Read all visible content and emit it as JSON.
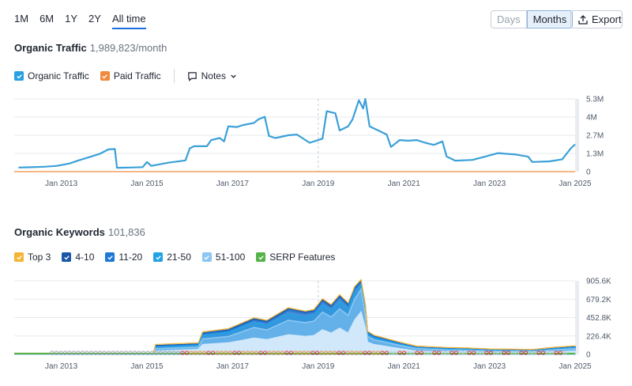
{
  "ranges": [
    {
      "label": "1M",
      "active": false
    },
    {
      "label": "6M",
      "active": false
    },
    {
      "label": "1Y",
      "active": false
    },
    {
      "label": "2Y",
      "active": false
    },
    {
      "label": "All time",
      "active": true
    }
  ],
  "view_toggle": {
    "days": "Days",
    "months": "Months",
    "selected": "Months"
  },
  "export_label": "Export",
  "traffic": {
    "title": "Organic Traffic",
    "metric": "1,989,823/month",
    "legend": [
      {
        "label": "Organic Traffic",
        "color": "#29a0e0",
        "checked": true
      },
      {
        "label": "Paid Traffic",
        "color": "#f08a3c",
        "checked": true
      }
    ],
    "notes_label": "Notes"
  },
  "keywords": {
    "title": "Organic Keywords",
    "metric": "101,836",
    "legend": [
      {
        "label": "Top 3",
        "color": "#f4b534",
        "checked": true
      },
      {
        "label": "4-10",
        "color": "#1a57a8",
        "checked": true
      },
      {
        "label": "11-20",
        "color": "#1f78d6",
        "checked": true
      },
      {
        "label": "21-50",
        "color": "#22a3e6",
        "checked": true
      },
      {
        "label": "51-100",
        "color": "#8cc6f2",
        "checked": true
      },
      {
        "label": "SERP Features",
        "color": "#56b34a",
        "checked": true
      }
    ]
  },
  "chart_data": [
    {
      "type": "line",
      "x_tick_labels": [
        "Jan 2013",
        "Jan 2015",
        "Jan 2017",
        "Jan 2019",
        "Jan 2021",
        "Jan 2023",
        "Jan 2025"
      ],
      "y_tick_labels": [
        "0",
        "1.3M",
        "2.7M",
        "4M",
        "5.3M"
      ],
      "ylim": [
        0,
        5300000
      ],
      "xlim": [
        2011.9,
        2025.0
      ],
      "grid": true,
      "series": [
        {
          "name": "Organic Traffic",
          "color": "#3aa0d8",
          "points": [
            [
              2012.0,
              300000
            ],
            [
              2012.3,
              320000
            ],
            [
              2012.6,
              360000
            ],
            [
              2012.9,
              420000
            ],
            [
              2013.2,
              600000
            ],
            [
              2013.4,
              820000
            ],
            [
              2013.6,
              1000000
            ],
            [
              2013.9,
              1300000
            ],
            [
              2014.1,
              1620000
            ],
            [
              2014.25,
              1650000
            ],
            [
              2014.3,
              280000
            ],
            [
              2014.6,
              300000
            ],
            [
              2014.9,
              330000
            ],
            [
              2015.0,
              700000
            ],
            [
              2015.1,
              420000
            ],
            [
              2015.5,
              650000
            ],
            [
              2015.9,
              820000
            ],
            [
              2016.0,
              1700000
            ],
            [
              2016.1,
              1850000
            ],
            [
              2016.4,
              1850000
            ],
            [
              2016.5,
              2300000
            ],
            [
              2016.7,
              2450000
            ],
            [
              2016.8,
              2200000
            ],
            [
              2016.9,
              3300000
            ],
            [
              2017.1,
              3250000
            ],
            [
              2017.25,
              3400000
            ],
            [
              2017.5,
              3550000
            ],
            [
              2017.6,
              3800000
            ],
            [
              2017.75,
              4000000
            ],
            [
              2017.85,
              2600000
            ],
            [
              2018.0,
              2450000
            ],
            [
              2018.3,
              2650000
            ],
            [
              2018.5,
              2700000
            ],
            [
              2018.8,
              2100000
            ],
            [
              2019.1,
              2400000
            ],
            [
              2019.2,
              4400000
            ],
            [
              2019.4,
              4250000
            ],
            [
              2019.5,
              3000000
            ],
            [
              2019.7,
              3300000
            ],
            [
              2019.8,
              3800000
            ],
            [
              2019.95,
              5200000
            ],
            [
              2020.05,
              4600000
            ],
            [
              2020.1,
              5300000
            ],
            [
              2020.2,
              3300000
            ],
            [
              2020.4,
              3000000
            ],
            [
              2020.6,
              2700000
            ],
            [
              2020.7,
              1800000
            ],
            [
              2020.9,
              2300000
            ],
            [
              2021.1,
              2250000
            ],
            [
              2021.3,
              2300000
            ],
            [
              2021.5,
              2100000
            ],
            [
              2021.7,
              1950000
            ],
            [
              2021.9,
              2200000
            ],
            [
              2022.0,
              1100000
            ],
            [
              2022.2,
              800000
            ],
            [
              2022.6,
              850000
            ],
            [
              2022.9,
              1100000
            ],
            [
              2023.2,
              1350000
            ],
            [
              2023.6,
              1250000
            ],
            [
              2023.9,
              1100000
            ],
            [
              2024.0,
              700000
            ],
            [
              2024.4,
              750000
            ],
            [
              2024.7,
              900000
            ],
            [
              2024.9,
              1700000
            ],
            [
              2025.0,
              1990000
            ]
          ]
        },
        {
          "name": "Paid Traffic",
          "color": "#f08a3c",
          "points": [
            [
              2011.9,
              0
            ],
            [
              2025.0,
              0
            ]
          ]
        }
      ]
    },
    {
      "type": "area",
      "x_tick_labels": [
        "Jan 2013",
        "Jan 2015",
        "Jan 2017",
        "Jan 2019",
        "Jan 2021",
        "Jan 2023",
        "Jan 2025"
      ],
      "y_tick_labels": [
        "0",
        "226.4K",
        "452.8K",
        "679.2K",
        "905.6K"
      ],
      "ylim": [
        0,
        905600
      ],
      "xlim": [
        2011.9,
        2025.0
      ],
      "grid": true,
      "x": [
        2011.9,
        2014.5,
        2015.15,
        2015.2,
        2016.2,
        2016.3,
        2016.9,
        2017.5,
        2017.8,
        2018.3,
        2018.7,
        2018.9,
        2019.1,
        2019.3,
        2019.5,
        2019.7,
        2019.85,
        2020.0,
        2020.1,
        2020.15,
        2020.3,
        2020.9,
        2021.3,
        2022.0,
        2022.5,
        2023.0,
        2023.5,
        2024.0,
        2024.5,
        2025.0
      ],
      "series": [
        {
          "name": "51-100",
          "color": "#d1e8fb",
          "values": [
            0,
            0,
            0,
            40000,
            60000,
            120000,
            140000,
            200000,
            180000,
            240000,
            220000,
            230000,
            300000,
            260000,
            320000,
            260000,
            420000,
            520000,
            320000,
            150000,
            120000,
            70000,
            40000,
            30000,
            30000,
            20000,
            20000,
            18000,
            30000,
            40000
          ]
        },
        {
          "name": "21-50",
          "color": "#8cc6f2",
          "values": [
            0,
            0,
            0,
            70000,
            90000,
            190000,
            220000,
            330000,
            300000,
            420000,
            390000,
            410000,
            520000,
            460000,
            560000,
            480000,
            680000,
            800000,
            480000,
            220000,
            180000,
            110000,
            70000,
            55000,
            50000,
            40000,
            38000,
            35000,
            55000,
            70000
          ]
        },
        {
          "name": "11-20",
          "color": "#22a3e6",
          "values": [
            0,
            0,
            0,
            90000,
            110000,
            230000,
            270000,
            390000,
            360000,
            500000,
            460000,
            480000,
            610000,
            540000,
            650000,
            560000,
            760000,
            860000,
            550000,
            250000,
            205000,
            125000,
            80000,
            64000,
            58000,
            48000,
            45000,
            41000,
            65000,
            82000
          ]
        },
        {
          "name": "4-10",
          "color": "#1f78d6",
          "values": [
            0,
            0,
            0,
            100000,
            120000,
            250000,
            290000,
            420000,
            390000,
            540000,
            500000,
            520000,
            650000,
            580000,
            700000,
            600000,
            800000,
            890000,
            580000,
            265000,
            215000,
            132000,
            85000,
            68000,
            62000,
            51000,
            48000,
            44000,
            70000,
            88000
          ]
        },
        {
          "name": "Top 3",
          "color": "#1a57a8",
          "values": [
            0,
            0,
            0,
            108000,
            128000,
            262000,
            302000,
            436000,
            405000,
            560000,
            518000,
            538000,
            670000,
            598000,
            720000,
            618000,
            820000,
            905000,
            598000,
            273000,
            222000,
            137000,
            88000,
            71000,
            64000,
            53000,
            50000,
            46000,
            73000,
            92000
          ]
        }
      ]
    }
  ]
}
